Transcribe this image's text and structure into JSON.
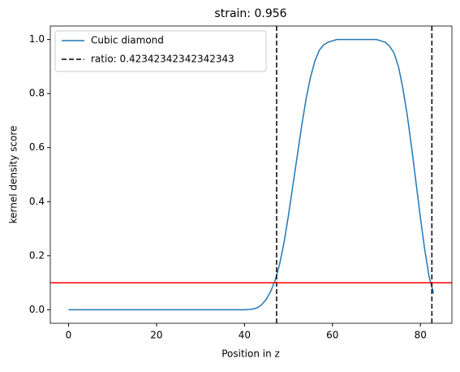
{
  "chart_data": {
    "type": "line",
    "title": "strain: 0.956",
    "xlabel": "Position in z",
    "ylabel": "kernel density score",
    "x": [
      0,
      1,
      2,
      3,
      4,
      5,
      6,
      7,
      8,
      9,
      10,
      11,
      12,
      13,
      14,
      15,
      16,
      17,
      18,
      19,
      20,
      21,
      22,
      23,
      24,
      25,
      26,
      27,
      28,
      29,
      30,
      31,
      32,
      33,
      34,
      35,
      36,
      37,
      38,
      39,
      40,
      41,
      42,
      43,
      44,
      45,
      46,
      47,
      48,
      49,
      50,
      51,
      52,
      53,
      54,
      55,
      56,
      57,
      58,
      59,
      60,
      61,
      62,
      63,
      64,
      65,
      66,
      67,
      68,
      69,
      70,
      71,
      72,
      73,
      74,
      75,
      76,
      77,
      78,
      79,
      80,
      81,
      82,
      83
    ],
    "series": [
      {
        "name": "Cubic diamond",
        "color": "#1f77b4",
        "values": [
          0,
          0,
          0,
          0,
          0,
          0,
          0,
          0,
          0,
          0,
          0,
          0,
          0,
          0,
          0,
          0,
          0,
          0,
          0,
          0,
          0,
          0,
          0,
          0,
          0,
          0,
          0,
          0,
          0,
          0,
          0,
          0,
          0,
          0,
          0,
          0,
          0,
          0,
          0,
          0,
          0,
          0.001,
          0.003,
          0.008,
          0.02,
          0.04,
          0.07,
          0.11,
          0.17,
          0.25,
          0.35,
          0.46,
          0.57,
          0.68,
          0.78,
          0.86,
          0.92,
          0.96,
          0.98,
          0.99,
          0.995,
          1,
          1,
          1,
          1,
          1,
          1,
          1,
          1,
          1,
          1,
          0.995,
          0.99,
          0.975,
          0.95,
          0.9,
          0.82,
          0.72,
          0.6,
          0.47,
          0.34,
          0.22,
          0.12,
          0.06
        ]
      }
    ],
    "vlines": {
      "name": "ratio: 0.42342342342342343",
      "color": "#000000",
      "values": [
        47.3,
        82.6
      ]
    },
    "hline": {
      "value": 0.1,
      "color": "#ff0000"
    },
    "xlim": [
      -4.15,
      87.15
    ],
    "xticks": [
      0,
      20,
      40,
      60,
      80
    ],
    "ylim": [
      -0.05,
      1.05
    ],
    "yticks": [
      {
        "value": 0,
        "label": "0.0"
      },
      {
        "value": 0.2,
        "label": "0.2"
      },
      {
        "value": 0.4,
        "label": "0.4"
      },
      {
        "value": 0.6,
        "label": "0.6"
      },
      {
        "value": 0.8,
        "label": "0.8"
      },
      {
        "value": 1,
        "label": "1.0"
      }
    ],
    "legend": "upper left"
  }
}
